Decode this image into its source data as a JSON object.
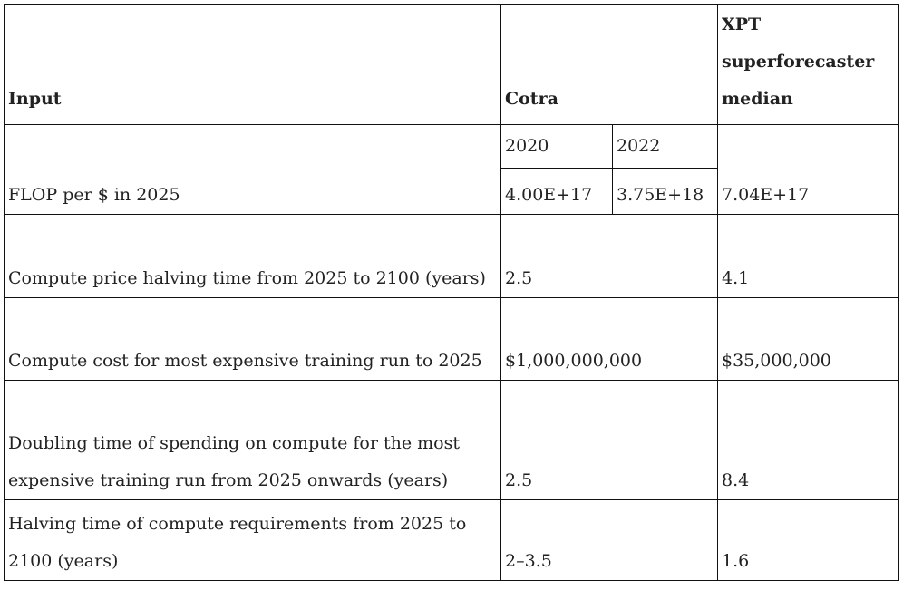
{
  "table": {
    "headers": {
      "input": "Input",
      "cotra": "Cotra",
      "xpt": "XPT superforecaster median"
    },
    "subheaders": [
      "2020",
      "2022"
    ],
    "rows": [
      {
        "input": "FLOP per $ in 2025",
        "cotra_2020": "4.00E+17",
        "cotra_2022": "3.75E+18",
        "xpt": "7.04E+17"
      },
      {
        "input": "Compute price halving time from 2025 to 2100 (years)",
        "cotra": "2.5",
        "xpt": "4.1"
      },
      {
        "input": "Compute cost for most expensive training run to 2025",
        "cotra": "$1,000,000,000",
        "xpt": "$35,000,000"
      },
      {
        "input": "Doubling time of spending on compute for the most expensive training run from 2025 onwards (years)",
        "cotra": "2.5",
        "xpt": "8.4"
      },
      {
        "input": "Halving time of compute requirements from 2025 to 2100 (years)",
        "cotra": "2–3.5",
        "xpt": "1.6"
      }
    ]
  }
}
